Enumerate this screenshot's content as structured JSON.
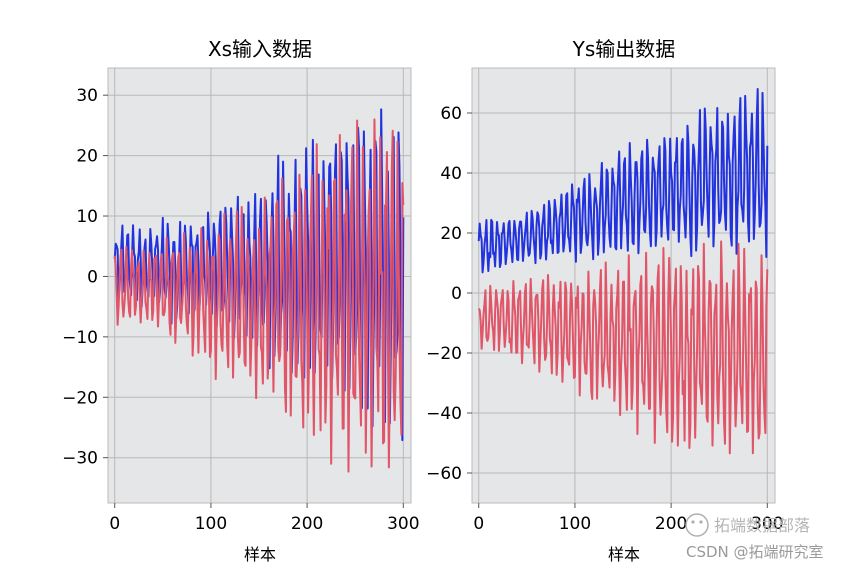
{
  "chart_data": [
    {
      "type": "line",
      "title": "Xs输入数据",
      "xlabel": "样本",
      "ylabel": "",
      "xlim": [
        -7,
        308
      ],
      "ylim": [
        -37.5,
        34.5
      ],
      "xticks": [
        0,
        100,
        200,
        300
      ],
      "yticks": [
        -30,
        -20,
        -10,
        0,
        10,
        20,
        30
      ],
      "grid": true,
      "n_samples": 300,
      "series": [
        {
          "color": "#2233dd",
          "x": [
            0,
            10,
            20,
            30,
            40,
            50,
            60,
            70,
            80,
            90,
            100,
            110,
            120,
            130,
            140,
            150,
            160,
            170,
            180,
            190,
            200,
            210,
            220,
            230,
            240,
            250,
            260,
            270,
            280,
            290,
            300
          ],
          "upper": [
            8,
            9,
            9,
            8,
            9,
            10,
            10,
            9,
            11,
            10,
            12,
            13,
            14,
            14,
            14,
            15,
            18,
            20,
            18,
            21,
            25,
            24,
            26,
            26,
            28,
            27,
            26,
            28,
            30,
            31,
            30
          ],
          "lower": [
            -5,
            -5,
            -5,
            -6,
            -5,
            -6,
            -8,
            -7,
            -8,
            -7,
            -8,
            -10,
            -11,
            -11,
            -12,
            -14,
            -15,
            -17,
            -17,
            -18,
            -20,
            -20,
            -21,
            -22,
            -23,
            -22,
            -24,
            -25,
            -27,
            -29,
            -30
          ],
          "period": 6.0
        },
        {
          "color": "#e05568",
          "x": [
            0,
            10,
            20,
            30,
            40,
            50,
            60,
            70,
            80,
            90,
            100,
            110,
            120,
            130,
            140,
            150,
            160,
            170,
            180,
            190,
            200,
            210,
            220,
            230,
            240,
            250,
            260,
            270,
            280,
            290,
            300
          ],
          "upper": [
            5,
            5,
            5,
            5,
            6,
            6,
            7,
            7,
            8,
            8,
            9,
            10,
            11,
            12,
            12,
            13,
            14,
            15,
            18,
            20,
            21,
            22,
            22,
            23,
            24,
            26,
            25,
            26,
            27,
            28,
            30
          ],
          "lower": [
            -8,
            -8,
            -8,
            -8,
            -9,
            -10,
            -11,
            -11,
            -13,
            -14,
            -16,
            -18,
            -19,
            -19,
            -20,
            -22,
            -22,
            -24,
            -25,
            -27,
            -29,
            -30,
            -31,
            -31,
            -32,
            -33,
            -34,
            -33,
            -34,
            -35,
            -35
          ],
          "period": 6.0
        }
      ]
    },
    {
      "type": "line",
      "title": "Ys输出数据",
      "xlabel": "样本",
      "ylabel": "",
      "xlim": [
        -7,
        308
      ],
      "ylim": [
        -70,
        75
      ],
      "xticks": [
        0,
        100,
        200,
        300
      ],
      "yticks": [
        -60,
        -40,
        -20,
        0,
        20,
        40,
        60
      ],
      "grid": true,
      "n_samples": 300,
      "series": [
        {
          "color": "#2233dd",
          "x": [
            0,
            10,
            20,
            30,
            40,
            50,
            60,
            70,
            80,
            90,
            100,
            110,
            120,
            130,
            140,
            150,
            160,
            170,
            180,
            190,
            200,
            210,
            220,
            230,
            240,
            250,
            260,
            270,
            280,
            290,
            300
          ],
          "upper": [
            25,
            26,
            25,
            26,
            27,
            28,
            30,
            31,
            33,
            36,
            40,
            40,
            42,
            44,
            47,
            50,
            50,
            52,
            53,
            55,
            56,
            58,
            60,
            61,
            62,
            62,
            64,
            65,
            66,
            68,
            70
          ],
          "lower": [
            5,
            6,
            7,
            8,
            8,
            9,
            9,
            9,
            10,
            10,
            10,
            10,
            10,
            11,
            11,
            11,
            11,
            12,
            12,
            12,
            12,
            12,
            12,
            13,
            13,
            13,
            13,
            13,
            13,
            12,
            12
          ],
          "period": 6.0
        },
        {
          "color": "#e05568",
          "x": [
            0,
            10,
            20,
            30,
            40,
            50,
            60,
            70,
            80,
            90,
            100,
            110,
            120,
            130,
            140,
            150,
            160,
            170,
            180,
            190,
            200,
            210,
            220,
            230,
            240,
            250,
            260,
            270,
            280,
            290,
            300
          ],
          "upper": [
            0,
            2,
            4,
            4,
            4,
            5,
            6,
            6,
            6,
            7,
            8,
            8,
            9,
            10,
            11,
            12,
            13,
            13,
            14,
            15,
            15,
            15,
            16,
            16,
            17,
            17,
            18,
            18,
            18,
            18,
            20
          ],
          "lower": [
            -18,
            -20,
            -21,
            -22,
            -23,
            -25,
            -26,
            -28,
            -30,
            -32,
            -34,
            -36,
            -38,
            -40,
            -42,
            -44,
            -46,
            -48,
            -50,
            -50,
            -52,
            -53,
            -54,
            -55,
            -56,
            -56,
            -57,
            -58,
            -60,
            -61,
            -62
          ],
          "period": 6.0
        }
      ]
    }
  ],
  "watermark": {
    "primary": "拓端数据部落",
    "secondary": "CSDN @拓端研究室"
  }
}
